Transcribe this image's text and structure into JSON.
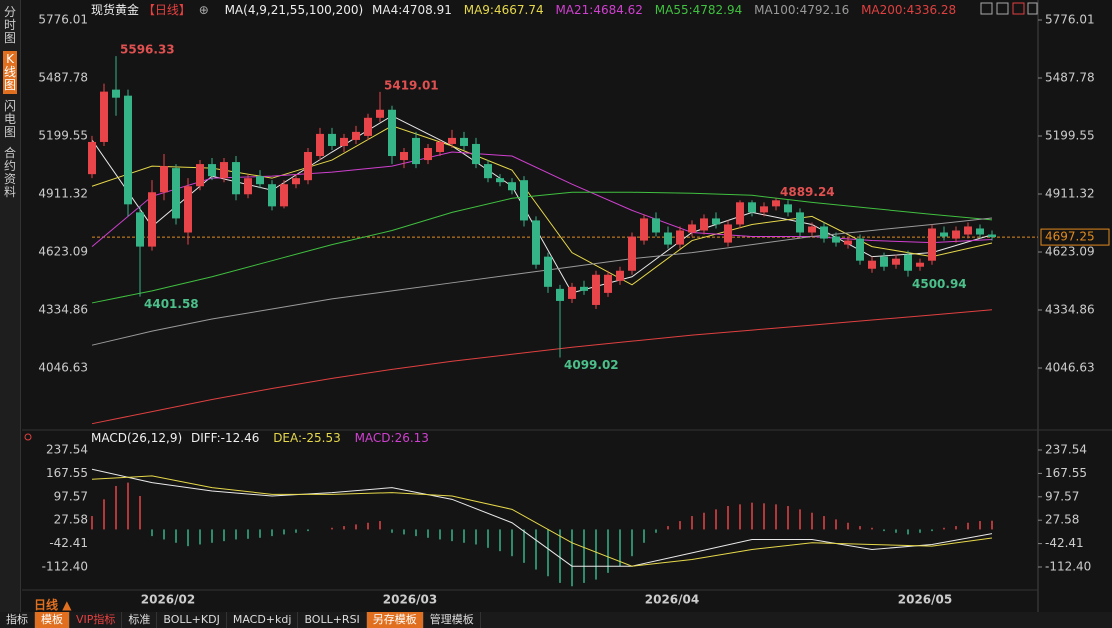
{
  "chart_data": {
    "type": "candlestick",
    "title": "现货黄金",
    "period": "【日线】",
    "ma_title": "MA(4,9,21,55,100,200)",
    "ylim": [
      3753.5,
      5776.01
    ],
    "yticks": [
      5776.01,
      5487.78,
      5199.55,
      4911.32,
      4623.09,
      4334.86,
      4046.63
    ],
    "up_color": "#e8454a",
    "down_color": "#35b488",
    "last_price": 4697.25,
    "extremes": [
      5596.33,
      5419.01,
      4401.58,
      4099.02,
      4889.24,
      4500.94
    ],
    "x_labels": [
      "2026/02",
      "2026/03",
      "2026/04",
      "2026/05"
    ],
    "candles": [
      [
        5010,
        5200,
        4990,
        5170
      ],
      [
        5170,
        5460,
        5150,
        5420
      ],
      [
        5430,
        5596.33,
        5300,
        5390
      ],
      [
        5400,
        5430,
        4800,
        4860
      ],
      [
        4820,
        4850,
        4401.58,
        4650
      ],
      [
        4650,
        4980,
        4630,
        4920
      ],
      [
        4920,
        5110,
        4880,
        5050
      ],
      [
        5040,
        5060,
        4760,
        4790
      ],
      [
        4720,
        4990,
        4660,
        4950
      ],
      [
        4950,
        5080,
        4930,
        5060
      ],
      [
        5060,
        5090,
        4980,
        5000
      ],
      [
        4990,
        5090,
        4970,
        5070
      ],
      [
        5070,
        5100,
        4880,
        4910
      ],
      [
        4910,
        5010,
        4890,
        4990
      ],
      [
        5000,
        5030,
        4940,
        4960
      ],
      [
        4960,
        4980,
        4830,
        4850
      ],
      [
        4850,
        4980,
        4840,
        4960
      ],
      [
        4960,
        5010,
        4940,
        4990
      ],
      [
        4980,
        5140,
        4960,
        5120
      ],
      [
        5100,
        5240,
        5080,
        5210
      ],
      [
        5210,
        5240,
        5130,
        5150
      ],
      [
        5150,
        5210,
        5120,
        5190
      ],
      [
        5180,
        5250,
        5160,
        5220
      ],
      [
        5200,
        5310,
        5180,
        5290
      ],
      [
        5290,
        5419.01,
        5270,
        5330
      ],
      [
        5330,
        5350,
        5060,
        5100
      ],
      [
        5080,
        5140,
        5040,
        5120
      ],
      [
        5190,
        5220,
        5040,
        5060
      ],
      [
        5080,
        5160,
        5060,
        5140
      ],
      [
        5120,
        5180,
        5100,
        5170
      ],
      [
        5160,
        5230,
        5140,
        5190
      ],
      [
        5190,
        5220,
        5130,
        5150
      ],
      [
        5160,
        5190,
        5040,
        5060
      ],
      [
        5060,
        5080,
        4970,
        4990
      ],
      [
        4990,
        5010,
        4950,
        4970
      ],
      [
        4970,
        4990,
        4910,
        4930
      ],
      [
        4980,
        5000,
        4750,
        4780
      ],
      [
        4780,
        4800,
        4540,
        4560
      ],
      [
        4600,
        4620,
        4420,
        4450
      ],
      [
        4440,
        4460,
        4099.02,
        4380
      ],
      [
        4390,
        4470,
        4370,
        4450
      ],
      [
        4450,
        4480,
        4410,
        4430
      ],
      [
        4360,
        4530,
        4340,
        4510
      ],
      [
        4420,
        4530,
        4400,
        4510
      ],
      [
        4480,
        4550,
        4460,
        4530
      ],
      [
        4530,
        4720,
        4510,
        4700
      ],
      [
        4680,
        4810,
        4660,
        4790
      ],
      [
        4790,
        4820,
        4700,
        4720
      ],
      [
        4720,
        4750,
        4640,
        4660
      ],
      [
        4660,
        4750,
        4640,
        4730
      ],
      [
        4720,
        4780,
        4700,
        4760
      ],
      [
        4730,
        4810,
        4710,
        4790
      ],
      [
        4790,
        4820,
        4740,
        4760
      ],
      [
        4670,
        4780,
        4650,
        4760
      ],
      [
        4760,
        4880,
        4740,
        4870
      ],
      [
        4870,
        4880,
        4800,
        4820
      ],
      [
        4820,
        4870,
        4800,
        4850
      ],
      [
        4850,
        4889.24,
        4830,
        4880
      ],
      [
        4860,
        4880,
        4800,
        4820
      ],
      [
        4820,
        4840,
        4700,
        4720
      ],
      [
        4720,
        4770,
        4700,
        4750
      ],
      [
        4750,
        4770,
        4670,
        4690
      ],
      [
        4700,
        4720,
        4650,
        4670
      ],
      [
        4660,
        4700,
        4640,
        4680
      ],
      [
        4690,
        4710,
        4560,
        4580
      ],
      [
        4540,
        4600,
        4520,
        4580
      ],
      [
        4600,
        4620,
        4530,
        4550
      ],
      [
        4560,
        4610,
        4540,
        4590
      ],
      [
        4610,
        4630,
        4500.94,
        4530
      ],
      [
        4550,
        4590,
        4530,
        4570
      ],
      [
        4580,
        4760,
        4560,
        4740
      ],
      [
        4720,
        4750,
        4680,
        4700
      ],
      [
        4690,
        4750,
        4670,
        4730
      ],
      [
        4710,
        4770,
        4690,
        4750
      ],
      [
        4740,
        4760,
        4690,
        4710
      ],
      [
        4710,
        4730,
        4680,
        4697.25
      ]
    ],
    "ma": [
      {
        "label": "MA4:4708.91",
        "color": "#e8e8e8",
        "values": [
          5180,
          4750,
          5000,
          4930,
          5120,
          5300,
          5150,
          4950,
          4420,
          4500,
          4720,
          4820,
          4760,
          4600,
          4620,
          4709
        ]
      },
      {
        "label": "MA9:4667.74",
        "color": "#e6d84a",
        "values": [
          4950,
          5050,
          5040,
          4990,
          5080,
          5250,
          5150,
          5030,
          4620,
          4460,
          4680,
          4760,
          4800,
          4650,
          4600,
          4668
        ]
      },
      {
        "label": "MA21:4684.62",
        "color": "#d040d0",
        "values": [
          4650,
          4900,
          4990,
          5000,
          5020,
          5050,
          5120,
          5100,
          4960,
          4830,
          4720,
          4700,
          4700,
          4680,
          4670,
          4685
        ]
      },
      {
        "label": "MA55:4782.94",
        "color": "#40c040",
        "values": [
          4370,
          4430,
          4500,
          4580,
          4660,
          4730,
          4820,
          4890,
          4920,
          4920,
          4915,
          4905,
          4870,
          4840,
          4810,
          4783
        ]
      },
      {
        "label": "MA100:4792.16",
        "color": "#9a9a9a",
        "values": [
          4160,
          4230,
          4290,
          4340,
          4390,
          4430,
          4470,
          4510,
          4550,
          4590,
          4620,
          4660,
          4700,
          4730,
          4760,
          4792
        ]
      },
      {
        "label": "MA200:4336.28",
        "color": "#e04040",
        "values": [
          3770,
          3830,
          3890,
          3945,
          3995,
          4040,
          4080,
          4115,
          4150,
          4180,
          4210,
          4235,
          4260,
          4285,
          4310,
          4336
        ]
      }
    ],
    "macd": {
      "title": "MACD(26,12,9)",
      "diff_label": "DIFF:-12.46",
      "dea_label": "DEA:-25.53",
      "macd_label": "MACD:26.13",
      "ylim": [
        -181.2,
        267.5
      ],
      "yticks": [
        237.54,
        167.55,
        97.57,
        27.58,
        -42.41,
        {
          "value": -112.4,
          "label": "-112.40"
        }
      ],
      "diff": [
        180,
        140,
        115,
        100,
        110,
        125,
        90,
        20,
        -110,
        -110,
        -70,
        -30,
        -30,
        -60,
        -45,
        -12.46
      ],
      "dea": [
        150,
        160,
        125,
        105,
        105,
        110,
        100,
        60,
        -40,
        -110,
        -90,
        -60,
        -40,
        -45,
        -50,
        -25.53
      ],
      "hist": [
        40,
        90,
        130,
        140,
        100,
        -20,
        -30,
        -40,
        -50,
        -45,
        -40,
        -35,
        -30,
        -28,
        -25,
        -20,
        -15,
        -10,
        -5,
        0,
        5,
        10,
        15,
        20,
        25,
        -10,
        -15,
        -20,
        -25,
        -30,
        -35,
        -40,
        -45,
        -55,
        -65,
        -80,
        -100,
        -120,
        -140,
        -160,
        -170,
        -160,
        -150,
        -130,
        -110,
        -80,
        -40,
        -10,
        10,
        25,
        40,
        50,
        60,
        70,
        75,
        80,
        78,
        75,
        70,
        60,
        50,
        40,
        30,
        20,
        10,
        5,
        -5,
        -10,
        -15,
        -10,
        -5,
        5,
        10,
        20,
        25,
        26.13
      ]
    }
  },
  "sidebar": [
    "分时图",
    "K线图",
    "闪电图",
    "合约资料"
  ],
  "period_label": "日线",
  "toolbar": [
    "指标",
    "模板",
    "VIP指标",
    "标准",
    "BOLL+KDJ",
    "MACD+kdj",
    "BOLL+RSI",
    "另存模板",
    "管理模板"
  ]
}
